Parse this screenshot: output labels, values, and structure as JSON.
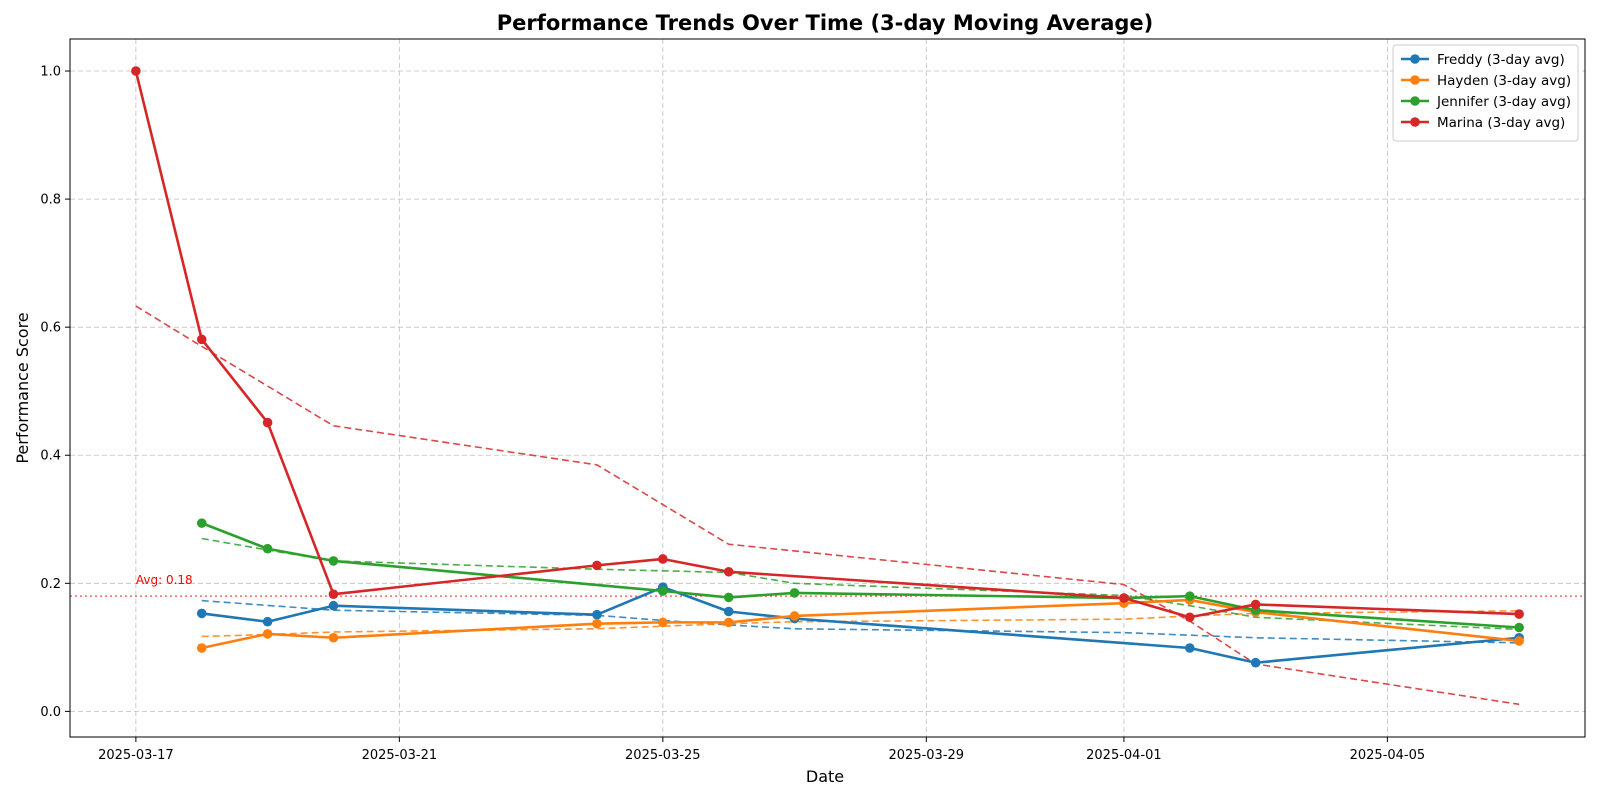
{
  "chart_data": {
    "type": "line",
    "title": "Performance Trends Over Time (3-day Moving Average)",
    "xlabel": "Date",
    "ylabel": "Performance Score",
    "x_axis": "date",
    "xlim": [
      "2025-03-16",
      "2025-04-08"
    ],
    "ylim": [
      -0.04,
      1.05
    ],
    "x_ticks": [
      "2025-03-17",
      "2025-03-21",
      "2025-03-25",
      "2025-03-29",
      "2025-04-01",
      "2025-04-05"
    ],
    "y_ticks": [
      0.0,
      0.2,
      0.4,
      0.6,
      0.8,
      1.0
    ],
    "y_tick_labels": [
      "0.0",
      "0.2",
      "0.4",
      "0.6",
      "0.8",
      "1.0"
    ],
    "grid": true,
    "legend_position": "top-right",
    "reference_line": {
      "y": 0.18,
      "label": "Avg: 0.18",
      "color": "#ff0000"
    },
    "series": [
      {
        "name": "Freddy (3-day avg)",
        "color": "#1f77b4",
        "x": [
          "2025-03-18",
          "2025-03-19",
          "2025-03-20",
          "2025-03-24",
          "2025-03-25",
          "2025-03-26",
          "2025-03-27",
          "2025-04-02",
          "2025-04-03",
          "2025-04-07"
        ],
        "y": [
          0.153,
          0.14,
          0.165,
          0.151,
          0.194,
          0.156,
          0.145,
          0.099,
          0.076,
          0.115
        ],
        "trend_x": [
          "2025-03-18",
          "2025-03-20",
          "2025-03-24",
          "2025-03-25",
          "2025-03-26",
          "2025-03-27",
          "2025-04-01",
          "2025-04-03",
          "2025-04-07"
        ],
        "trend_y": [
          0.173,
          0.158,
          0.15,
          0.142,
          0.135,
          0.129,
          0.123,
          0.115,
          0.107
        ]
      },
      {
        "name": "Hayden (3-day avg)",
        "color": "#ff7f0e",
        "x": [
          "2025-03-18",
          "2025-03-19",
          "2025-03-20",
          "2025-03-24",
          "2025-03-25",
          "2025-03-26",
          "2025-03-27",
          "2025-04-01",
          "2025-04-02",
          "2025-04-03",
          "2025-04-07"
        ],
        "y": [
          0.099,
          0.121,
          0.115,
          0.137,
          0.139,
          0.139,
          0.149,
          0.169,
          0.174,
          0.155,
          0.11
        ],
        "trend_x": [
          "2025-03-18",
          "2025-03-19",
          "2025-03-20",
          "2025-03-24",
          "2025-03-25",
          "2025-03-26",
          "2025-03-27",
          "2025-04-01",
          "2025-04-02",
          "2025-04-03",
          "2025-04-07"
        ],
        "trend_y": [
          0.117,
          0.12,
          0.124,
          0.129,
          0.133,
          0.137,
          0.14,
          0.144,
          0.149,
          0.153,
          0.157
        ]
      },
      {
        "name": "Jennifer (3-day avg)",
        "color": "#2ca02c",
        "x": [
          "2025-03-18",
          "2025-03-19",
          "2025-03-20",
          "2025-03-25",
          "2025-03-26",
          "2025-03-27",
          "2025-04-01",
          "2025-04-02",
          "2025-04-03",
          "2025-04-07"
        ],
        "y": [
          0.294,
          0.254,
          0.235,
          0.188,
          0.178,
          0.185,
          0.177,
          0.18,
          0.158,
          0.131
        ],
        "trend_x": [
          "2025-03-18",
          "2025-03-19",
          "2025-03-20",
          "2025-03-24",
          "2025-03-26",
          "2025-03-27",
          "2025-04-01",
          "2025-04-02",
          "2025-04-03",
          "2025-04-07"
        ],
        "trend_y": [
          0.27,
          0.252,
          0.235,
          0.222,
          0.217,
          0.2,
          0.181,
          0.165,
          0.147,
          0.128
        ]
      },
      {
        "name": "Marina (3-day avg)",
        "color": "#d62728",
        "x": [
          "2025-03-17",
          "2025-03-18",
          "2025-03-19",
          "2025-03-20",
          "2025-03-24",
          "2025-03-25",
          "2025-03-26",
          "2025-04-01",
          "2025-04-02",
          "2025-04-03",
          "2025-04-07"
        ],
        "y": [
          1.0,
          0.581,
          0.451,
          0.183,
          0.228,
          0.238,
          0.218,
          0.177,
          0.147,
          0.167,
          0.152
        ],
        "trend_x": [
          "2025-03-17",
          "2025-03-18",
          "2025-03-20",
          "2025-03-24",
          "2025-03-26",
          "2025-04-01",
          "2025-04-02",
          "2025-04-03",
          "2025-04-07"
        ],
        "trend_y": [
          0.633,
          0.57,
          0.446,
          0.385,
          0.261,
          0.198,
          0.141,
          0.074,
          0.011
        ]
      }
    ]
  }
}
